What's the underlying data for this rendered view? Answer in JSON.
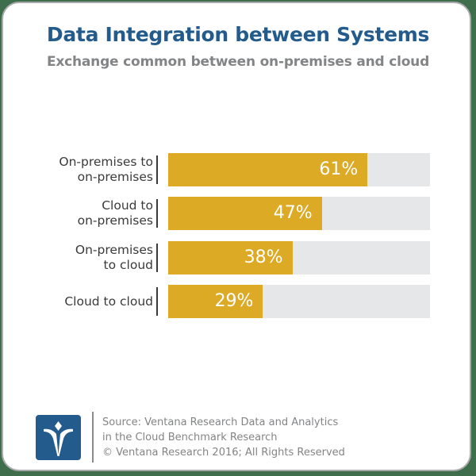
{
  "header": {
    "title": "Data Integration between Systems",
    "subtitle": "Exchange common between on-premises and cloud"
  },
  "chart_data": {
    "type": "bar",
    "orientation": "horizontal",
    "title": "Data Integration between Systems",
    "subtitle": "Exchange common between on-premises and cloud",
    "categories": [
      "On-premises to on-premises",
      "Cloud to on-premises",
      "On-premises to cloud",
      "Cloud to cloud"
    ],
    "category_lines": [
      [
        "On-premises to",
        "on-premises"
      ],
      [
        "Cloud to",
        "on-premises"
      ],
      [
        "On-premises",
        "to cloud"
      ],
      [
        "Cloud to cloud"
      ]
    ],
    "values": [
      61,
      47,
      38,
      29
    ],
    "value_labels": [
      "61%",
      "47%",
      "38%",
      "29%"
    ],
    "xlabel": "",
    "ylabel": "",
    "grid": false,
    "legend": null,
    "colors": {
      "bar": "#dcaa25",
      "track": "#e6e7e8"
    }
  },
  "footer": {
    "logo": "ventana-research-logo-icon",
    "source_lines": [
      "Source: Ventana Research Data and Analytics",
      "in the Cloud Benchmark Research",
      "© Ventana Research 2016; All Rights Reserved"
    ]
  },
  "colors": {
    "title": "#235b8d",
    "subtitle": "#838486",
    "background_border": "#3f6e4c",
    "card_border": "#a9aaab"
  }
}
